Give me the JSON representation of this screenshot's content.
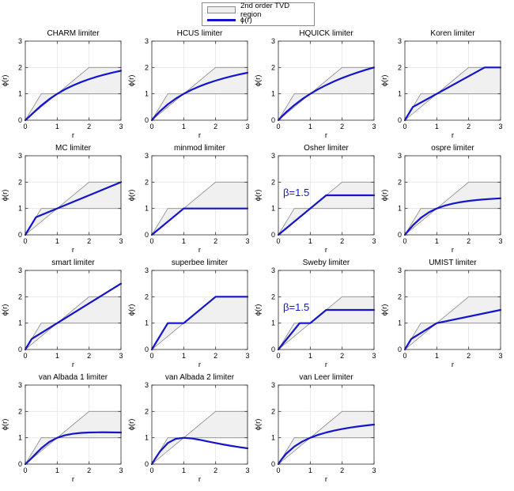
{
  "legend": {
    "region_label": "2nd order TVD region",
    "phi_label": "ϕ(r)"
  },
  "colors": {
    "line": "#1414cc",
    "region_fill": "#f0f0f0",
    "region_edge": "#8a8a8a",
    "grid": "#e5e5e5",
    "axis": "#2b2b2b",
    "text": "#000000",
    "annotation": "#1414cc"
  },
  "chart_data": {
    "type": "line",
    "grid": true,
    "legend_position": "top-center",
    "axes": {
      "xlabel": "r",
      "ylabel": "ϕ(r)",
      "xlim": [
        0,
        3
      ],
      "ylim": [
        0,
        3
      ],
      "xticks": [
        0,
        1,
        2,
        3
      ],
      "yticks": [
        0,
        1,
        2,
        3
      ]
    },
    "tvd_region_polygon": [
      [
        0,
        0
      ],
      [
        0.5,
        1
      ],
      [
        1,
        1
      ],
      [
        2,
        2
      ],
      [
        3,
        2
      ],
      [
        3,
        1
      ],
      [
        1,
        1
      ]
    ],
    "plots": [
      {
        "title": "CHARM limiter",
        "points": [
          [
            0,
            0
          ],
          [
            0.1,
            0.107
          ],
          [
            0.25,
            0.28
          ],
          [
            0.5,
            0.556
          ],
          [
            0.75,
            0.796
          ],
          [
            1,
            1
          ],
          [
            1.25,
            1.173
          ],
          [
            1.5,
            1.32
          ],
          [
            1.75,
            1.446
          ],
          [
            2,
            1.556
          ],
          [
            2.25,
            1.651
          ],
          [
            2.5,
            1.735
          ],
          [
            2.75,
            1.809
          ],
          [
            3,
            1.875
          ]
        ]
      },
      {
        "title": "HCUS limiter",
        "points": [
          [
            0,
            0
          ],
          [
            0.1,
            0.143
          ],
          [
            0.25,
            0.333
          ],
          [
            0.5,
            0.6
          ],
          [
            0.75,
            0.818
          ],
          [
            1,
            1
          ],
          [
            1.25,
            1.154
          ],
          [
            1.5,
            1.286
          ],
          [
            1.75,
            1.4
          ],
          [
            2,
            1.5
          ],
          [
            2.25,
            1.588
          ],
          [
            2.5,
            1.667
          ],
          [
            2.75,
            1.737
          ],
          [
            3,
            1.8
          ]
        ]
      },
      {
        "title": "HQUICK limiter",
        "points": [
          [
            0,
            0
          ],
          [
            0.1,
            0.129
          ],
          [
            0.25,
            0.308
          ],
          [
            0.5,
            0.571
          ],
          [
            0.75,
            0.8
          ],
          [
            1,
            1
          ],
          [
            1.25,
            1.176
          ],
          [
            1.5,
            1.333
          ],
          [
            1.75,
            1.474
          ],
          [
            2,
            1.6
          ],
          [
            2.25,
            1.714
          ],
          [
            2.5,
            1.818
          ],
          [
            2.75,
            1.913
          ],
          [
            3,
            2
          ]
        ]
      },
      {
        "title": "Koren limiter",
        "points": [
          [
            0,
            0
          ],
          [
            0.25,
            0.5
          ],
          [
            2.5,
            2
          ],
          [
            3,
            2
          ]
        ]
      },
      {
        "title": "MC limiter",
        "points": [
          [
            0,
            0
          ],
          [
            0.333,
            0.667
          ],
          [
            3,
            2
          ]
        ]
      },
      {
        "title": "minmod limiter",
        "points": [
          [
            0,
            0
          ],
          [
            1,
            1
          ],
          [
            3,
            1
          ]
        ]
      },
      {
        "title": "Osher limiter",
        "annotation": "β=1.5",
        "points": [
          [
            0,
            0
          ],
          [
            1.5,
            1.5
          ],
          [
            3,
            1.5
          ]
        ]
      },
      {
        "title": "ospre limiter",
        "points": [
          [
            0,
            0
          ],
          [
            0.1,
            0.149
          ],
          [
            0.25,
            0.357
          ],
          [
            0.5,
            0.643
          ],
          [
            0.75,
            0.851
          ],
          [
            1,
            1
          ],
          [
            1.25,
            1.107
          ],
          [
            1.5,
            1.184
          ],
          [
            1.75,
            1.242
          ],
          [
            2,
            1.286
          ],
          [
            2.25,
            1.32
          ],
          [
            2.5,
            1.346
          ],
          [
            2.75,
            1.367
          ],
          [
            3,
            1.385
          ]
        ]
      },
      {
        "title": "smart limiter",
        "points": [
          [
            0,
            0
          ],
          [
            0.2,
            0.4
          ],
          [
            3,
            2.5
          ]
        ]
      },
      {
        "title": "superbee limiter",
        "points": [
          [
            0,
            0
          ],
          [
            0.5,
            1
          ],
          [
            1,
            1
          ],
          [
            2,
            2
          ],
          [
            3,
            2
          ]
        ]
      },
      {
        "title": "Sweby limiter",
        "annotation": "β=1.5",
        "points": [
          [
            0,
            0
          ],
          [
            0.667,
            1
          ],
          [
            1,
            1
          ],
          [
            1.5,
            1.5
          ],
          [
            3,
            1.5
          ]
        ]
      },
      {
        "title": "UMIST limiter",
        "points": [
          [
            0,
            0
          ],
          [
            0.2,
            0.4
          ],
          [
            1,
            1
          ],
          [
            3,
            1.5
          ]
        ]
      },
      {
        "title": "van Albada 1 limiter",
        "points": [
          [
            0,
            0
          ],
          [
            0.1,
            0.109
          ],
          [
            0.25,
            0.294
          ],
          [
            0.5,
            0.6
          ],
          [
            0.75,
            0.84
          ],
          [
            1,
            1
          ],
          [
            1.25,
            1.098
          ],
          [
            1.5,
            1.154
          ],
          [
            1.75,
            1.185
          ],
          [
            2,
            1.2
          ],
          [
            2.25,
            1.206
          ],
          [
            2.5,
            1.207
          ],
          [
            2.75,
            1.204
          ],
          [
            3,
            1.2
          ]
        ]
      },
      {
        "title": "van Albada 2 limiter",
        "points": [
          [
            0,
            0
          ],
          [
            0.1,
            0.198
          ],
          [
            0.25,
            0.471
          ],
          [
            0.5,
            0.8
          ],
          [
            0.75,
            0.96
          ],
          [
            1,
            1
          ],
          [
            1.25,
            0.976
          ],
          [
            1.5,
            0.923
          ],
          [
            1.75,
            0.862
          ],
          [
            2,
            0.8
          ],
          [
            2.25,
            0.742
          ],
          [
            2.5,
            0.69
          ],
          [
            2.75,
            0.642
          ],
          [
            3,
            0.6
          ]
        ]
      },
      {
        "title": "van Leer limiter",
        "points": [
          [
            0,
            0
          ],
          [
            0.1,
            0.182
          ],
          [
            0.25,
            0.4
          ],
          [
            0.5,
            0.667
          ],
          [
            0.75,
            0.857
          ],
          [
            1,
            1
          ],
          [
            1.25,
            1.111
          ],
          [
            1.5,
            1.2
          ],
          [
            1.75,
            1.273
          ],
          [
            2,
            1.333
          ],
          [
            2.25,
            1.385
          ],
          [
            2.5,
            1.429
          ],
          [
            2.75,
            1.467
          ],
          [
            3,
            1.5
          ]
        ]
      }
    ]
  }
}
